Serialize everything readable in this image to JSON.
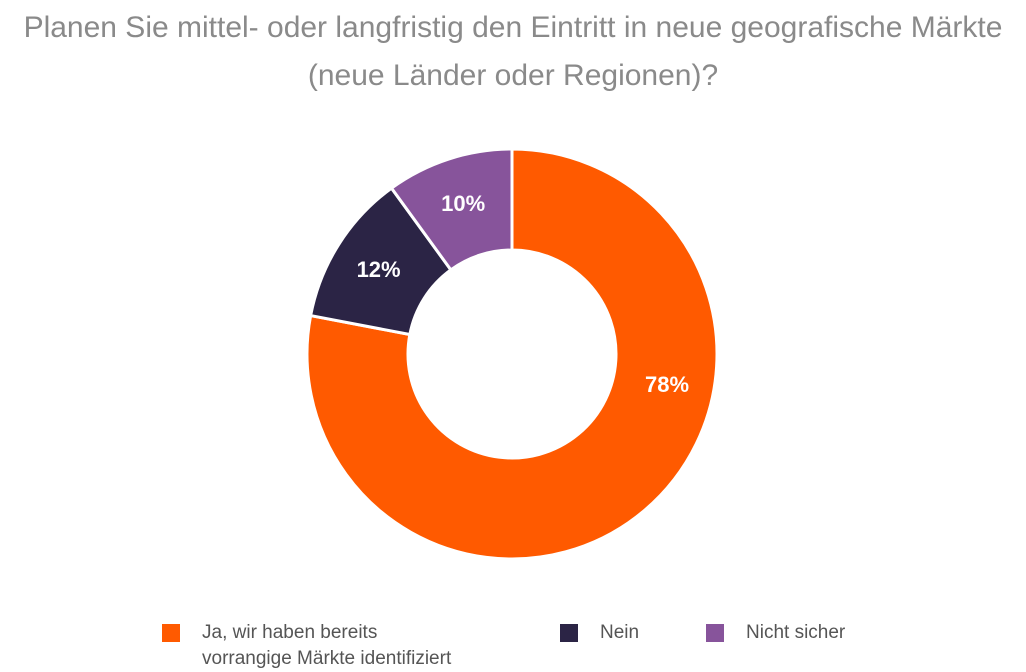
{
  "chart_data": {
    "type": "pie",
    "donut": true,
    "title": "Planen Sie mittel- oder langfristig den Eintritt in neue geografische Märkte (neue Länder oder Regionen)?",
    "title_lines": [
      "Planen Sie mittel- oder langfristig den Eintritt in neue geografische Märkte",
      "(neue Länder oder Regionen)?"
    ],
    "legend_position": "bottom",
    "slices": [
      {
        "name": "Ja, wir haben bereits vorrangige Märkte identifiziert",
        "legend_lines": [
          "Ja, wir haben bereits",
          "vorrangige Märkte identifiziert"
        ],
        "value": 78,
        "label": "78%",
        "color": "#ff5a00"
      },
      {
        "name": "Nein",
        "legend_lines": [
          "Nein"
        ],
        "value": 12,
        "label": "12%",
        "color": "#2b2445"
      },
      {
        "name": "Nicht sicher",
        "legend_lines": [
          "Nicht sicher"
        ],
        "value": 10,
        "label": "10%",
        "color": "#87549b"
      }
    ]
  }
}
